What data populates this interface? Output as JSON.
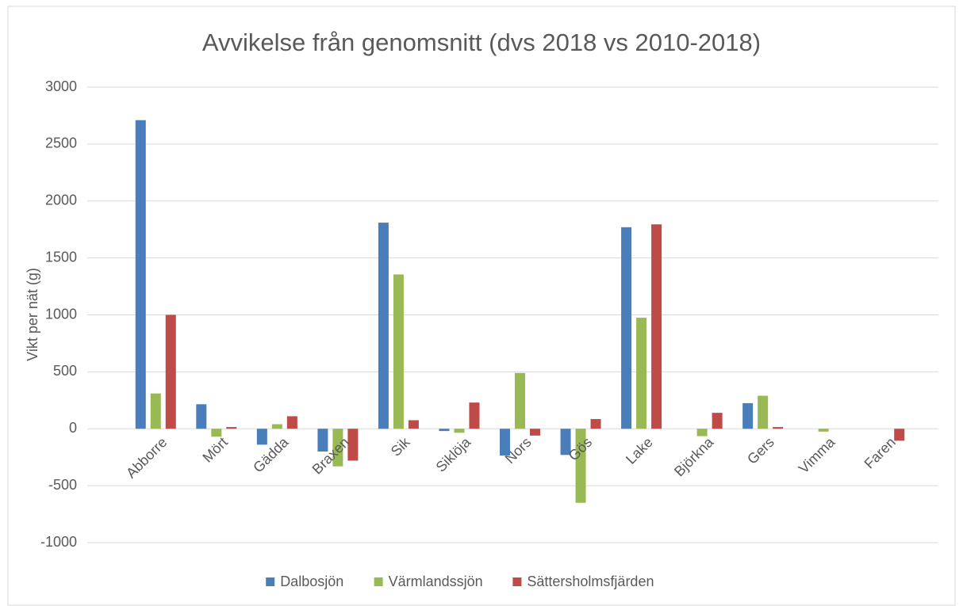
{
  "chart_data": {
    "type": "bar",
    "title": "Avvikelse från genomsnitt (dvs 2018 vs 2010-2018)",
    "y_label": "Vikt per nät (g)",
    "categories": [
      "Abborre",
      "Mört",
      "Gädda",
      "Braxen",
      "Sik",
      "Siklöja",
      "Nors",
      "Gös",
      "Lake",
      "Björkna",
      "Gers",
      "Vimma",
      "Faren"
    ],
    "series": [
      {
        "name": "Dalbosjön",
        "color": "#4a7ebb",
        "values": [
          2710,
          215,
          -140,
          -200,
          1810,
          -20,
          -235,
          -230,
          1770,
          0,
          225,
          0,
          0
        ]
      },
      {
        "name": "Värmlandssjön",
        "color": "#98b954",
        "values": [
          310,
          -70,
          40,
          -330,
          1355,
          -35,
          490,
          -650,
          975,
          -65,
          290,
          -25,
          0
        ]
      },
      {
        "name": "Sättersholmsfjärden",
        "color": "#be4b48",
        "values": [
          1000,
          15,
          110,
          -280,
          75,
          230,
          -60,
          85,
          1795,
          140,
          15,
          0,
          -105
        ]
      }
    ],
    "ylim": [
      -1000,
      3000
    ],
    "yticks": [
      -1000,
      -500,
      0,
      500,
      1000,
      1500,
      2000,
      2500,
      3000
    ],
    "grid": true,
    "legend": "bottom"
  }
}
